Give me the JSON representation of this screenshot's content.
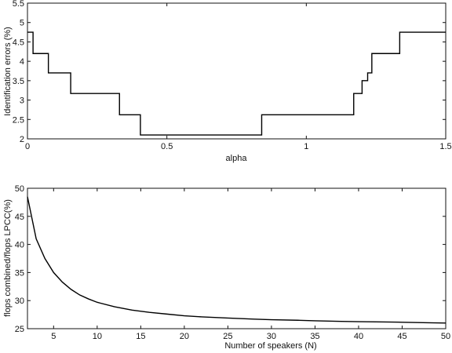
{
  "chart_data": [
    {
      "type": "line",
      "step": true,
      "xlabel": "alpha",
      "ylabel": "Identification errors (%)",
      "xlim": [
        0,
        1.5
      ],
      "ylim": [
        2,
        5.5
      ],
      "xticks": [
        0,
        0.5,
        1,
        1.5
      ],
      "xtick_labels": [
        "0",
        "0.5",
        "1",
        "1.5"
      ],
      "yticks": [
        2,
        2.5,
        3,
        3.5,
        4,
        4.5,
        5,
        5.5
      ],
      "ytick_labels": [
        "2",
        "2.5",
        "3",
        "3.5",
        "4",
        "4.5",
        "5",
        "5.5"
      ],
      "grid": false,
      "series": [
        {
          "x": [
            0,
            0.02,
            0.02,
            0.075,
            0.075,
            0.155,
            0.155,
            0.33,
            0.33,
            0.405,
            0.405,
            0.84,
            0.84,
            1.17,
            1.17,
            1.2,
            1.2,
            1.22,
            1.22,
            1.235,
            1.235,
            1.335,
            1.335,
            1.5
          ],
          "y": [
            4.75,
            4.75,
            4.2,
            4.2,
            3.7,
            3.7,
            3.17,
            3.17,
            2.62,
            2.62,
            2.1,
            2.1,
            2.62,
            2.62,
            3.17,
            3.17,
            3.5,
            3.5,
            3.7,
            3.7,
            4.2,
            4.2,
            4.75,
            4.75
          ]
        }
      ]
    },
    {
      "type": "line",
      "xlabel": "Number of speakers (N)",
      "ylabel": "flops combined/flops LPCC(%)",
      "xlim": [
        2,
        50
      ],
      "ylim": [
        25,
        50
      ],
      "xticks": [
        5,
        10,
        15,
        20,
        25,
        30,
        35,
        40,
        45,
        50
      ],
      "xtick_labels": [
        "5",
        "10",
        "15",
        "20",
        "25",
        "30",
        "35",
        "40",
        "45",
        "50"
      ],
      "yticks": [
        25,
        30,
        35,
        40,
        45,
        50
      ],
      "ytick_labels": [
        "25",
        "30",
        "35",
        "40",
        "45",
        "50"
      ],
      "grid": false,
      "series": [
        {
          "x": [
            2,
            3,
            4,
            5,
            6,
            7,
            8,
            9,
            10,
            12,
            14,
            16,
            18,
            20,
            22,
            25,
            28,
            30,
            33,
            35,
            38,
            40,
            43,
            45,
            48,
            50
          ],
          "y": [
            48.5,
            41.0,
            37.5,
            35.0,
            33.3,
            32.0,
            31.0,
            30.3,
            29.7,
            28.9,
            28.3,
            27.9,
            27.6,
            27.3,
            27.1,
            26.9,
            26.7,
            26.6,
            26.5,
            26.4,
            26.3,
            26.25,
            26.2,
            26.15,
            26.05,
            26.0
          ]
        }
      ]
    }
  ]
}
